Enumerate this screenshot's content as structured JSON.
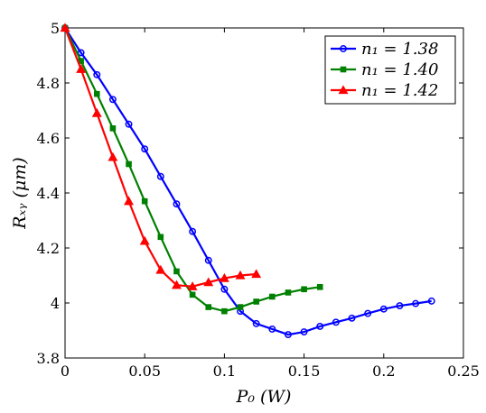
{
  "chart_data": {
    "type": "line",
    "xlabel": "P₀ (W)",
    "ylabel": "Rₓᵧ (μm)",
    "xlim": [
      0,
      0.25
    ],
    "ylim": [
      3.8,
      5.0
    ],
    "xticks": [
      0,
      0.05,
      0.1,
      0.15,
      0.2,
      0.25
    ],
    "xtick_labels": [
      "0",
      "0.05",
      "0.1",
      "0.15",
      "0.2",
      "0.25"
    ],
    "yticks": [
      3.8,
      4.0,
      4.2,
      4.4,
      4.6,
      4.8,
      5.0
    ],
    "ytick_labels": [
      "3.8",
      "4",
      "4.2",
      "4.4",
      "4.6",
      "4.8",
      "5"
    ],
    "grid": false,
    "legend_position": "top-right",
    "series": [
      {
        "name": "n₁ = 1.38",
        "color": "#0000ff",
        "marker": "circle",
        "x": [
          0,
          0.01,
          0.02,
          0.03,
          0.04,
          0.05,
          0.06,
          0.07,
          0.08,
          0.09,
          0.1,
          0.11,
          0.12,
          0.13,
          0.14,
          0.15,
          0.16,
          0.17,
          0.18,
          0.19,
          0.2,
          0.21,
          0.22,
          0.23
        ],
        "y": [
          5.0,
          4.91,
          4.83,
          4.74,
          4.65,
          4.56,
          4.46,
          4.36,
          4.26,
          4.155,
          4.05,
          3.97,
          3.925,
          3.905,
          3.885,
          3.895,
          3.915,
          3.93,
          3.945,
          3.962,
          3.978,
          3.99,
          3.998,
          4.007
        ]
      },
      {
        "name": "n₁ = 1.40",
        "color": "#008000",
        "marker": "square",
        "x": [
          0,
          0.01,
          0.02,
          0.03,
          0.04,
          0.05,
          0.06,
          0.07,
          0.08,
          0.09,
          0.1,
          0.11,
          0.12,
          0.13,
          0.14,
          0.15,
          0.16
        ],
        "y": [
          5.0,
          4.88,
          4.76,
          4.635,
          4.505,
          4.37,
          4.24,
          4.115,
          4.03,
          3.985,
          3.97,
          3.985,
          4.005,
          4.023,
          4.038,
          4.05,
          4.058
        ]
      },
      {
        "name": "n₁ = 1.42",
        "color": "#ff0000",
        "marker": "triangle",
        "x": [
          0,
          0.01,
          0.02,
          0.03,
          0.04,
          0.05,
          0.06,
          0.07,
          0.08,
          0.09,
          0.1,
          0.11,
          0.12
        ],
        "y": [
          5.0,
          4.85,
          4.69,
          4.53,
          4.37,
          4.225,
          4.12,
          4.065,
          4.06,
          4.075,
          4.09,
          4.1,
          4.105
        ]
      }
    ]
  }
}
